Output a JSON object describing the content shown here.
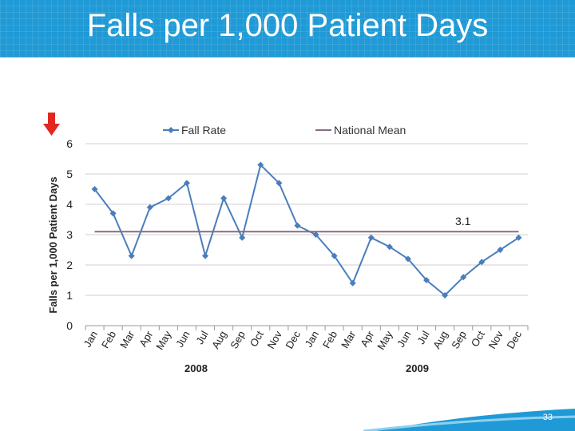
{
  "slide": {
    "title": "Falls per 1,000 Patient Days",
    "page_number": "33",
    "header_color": "#1f9ad6",
    "arrow_icon": "red-down-arrow-icon"
  },
  "chart_data": {
    "type": "line",
    "ylabel": "Falls per 1,000 Patient Days",
    "xlabel": "",
    "ylim": [
      0,
      6
    ],
    "yticks": [
      "0",
      "1",
      "2",
      "3",
      "4",
      "5",
      "6"
    ],
    "grid": true,
    "legend_position": "top",
    "categories": [
      "Jan",
      "Feb",
      "Mar",
      "Apr",
      "May",
      "Jun",
      "Jul",
      "Aug",
      "Sep",
      "Oct",
      "Nov",
      "Dec",
      "Jan",
      "Feb",
      "Mar",
      "Apr",
      "May",
      "Jun",
      "Jul",
      "Aug",
      "Sep",
      "Oct",
      "Nov",
      "Dec"
    ],
    "year_groups": [
      {
        "label": "2008",
        "count": 12
      },
      {
        "label": "2009",
        "count": 12
      }
    ],
    "series": [
      {
        "name": "Fall Rate",
        "color": "#4a7ebb",
        "marker": "diamond",
        "values": [
          4.5,
          3.7,
          2.3,
          3.9,
          4.2,
          4.7,
          2.3,
          4.2,
          2.9,
          5.3,
          4.7,
          3.3,
          3.0,
          2.3,
          1.4,
          2.9,
          2.6,
          2.2,
          1.5,
          1.0,
          1.6,
          2.1,
          2.5,
          2.9
        ]
      },
      {
        "name": "National Mean",
        "color": "#8b6a84",
        "marker": "none",
        "constant": 3.1
      }
    ],
    "annotations": [
      {
        "text": "3.1"
      }
    ]
  }
}
